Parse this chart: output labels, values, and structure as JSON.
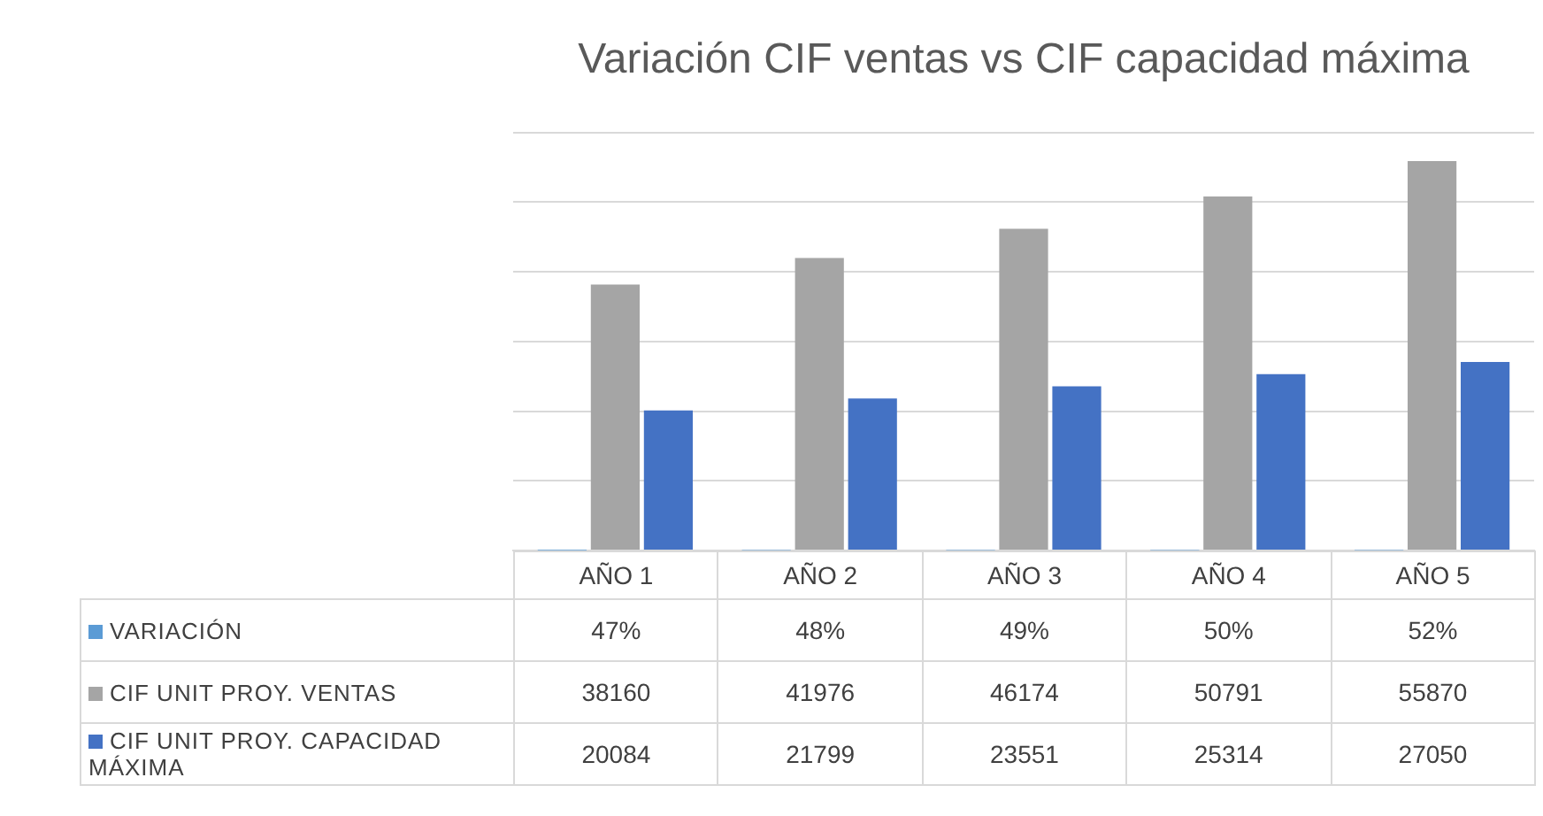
{
  "chart_data": {
    "type": "bar",
    "title": "Variación CIF ventas vs CIF capacidad máxima",
    "categories": [
      "AÑO 1",
      "AÑO 2",
      "AÑO 3",
      "AÑO 4",
      "AÑO 5"
    ],
    "series": [
      {
        "name": "VARIACIÓN",
        "color": "#5b9bd5",
        "values": [
          47,
          48,
          49,
          50,
          52
        ],
        "value_labels": [
          "47%",
          "48%",
          "49%",
          "50%",
          "52%"
        ]
      },
      {
        "name": "CIF UNIT PROY. VENTAS",
        "color": "#a5a5a5",
        "values": [
          38160,
          41976,
          46174,
          50791,
          55870
        ],
        "value_labels": [
          "38160",
          "41976",
          "46174",
          "50791",
          "55870"
        ]
      },
      {
        "name": "CIF UNIT PROY. CAPACIDAD MÁXIMA",
        "color": "#4472c4",
        "values": [
          20084,
          21799,
          23551,
          25314,
          27050
        ],
        "value_labels": [
          "20084",
          "21799",
          "23551",
          "25314",
          "27050"
        ]
      }
    ],
    "ylim": [
      0,
      60000
    ],
    "yticks": [
      {
        "value": 0,
        "label": null
      },
      {
        "value": 10000,
        "label": null
      },
      {
        "value": 20000,
        "label": null
      },
      {
        "value": 30000,
        "label": null
      },
      {
        "value": 40000,
        "label": null
      },
      {
        "value": 50000,
        "label": null
      },
      {
        "value": 60000,
        "label": null
      }
    ],
    "tick_labels": "x",
    "grid": "y",
    "legend": "bottom"
  }
}
